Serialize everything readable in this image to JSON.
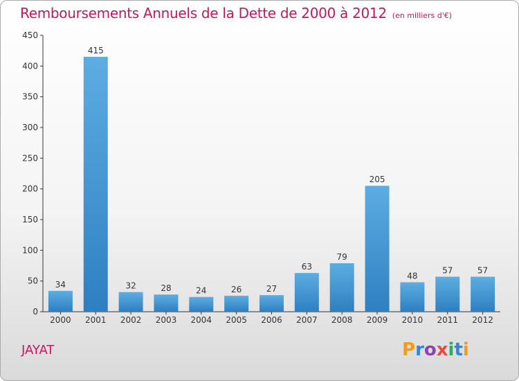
{
  "header": {
    "title": "Remboursements Annuels de la Dette de 2000 à 2012",
    "unit_note": "(en milliers d'€)"
  },
  "footer": {
    "commune": "JAYAT",
    "logo_text": "Proxiti"
  },
  "colors": {
    "title": "#c2185b",
    "bar_top": "#5dade2",
    "bar_bottom": "#2e7fc1",
    "axis": "#333333"
  },
  "chart_data": {
    "type": "bar",
    "title": "Remboursements Annuels de la Dette de 2000 à 2012",
    "subtitle": "(en milliers d'€)",
    "xlabel": "",
    "ylabel": "",
    "categories": [
      "2000",
      "2001",
      "2002",
      "2003",
      "2004",
      "2005",
      "2006",
      "2007",
      "2008",
      "2009",
      "2010",
      "2011",
      "2012"
    ],
    "values": [
      34,
      415,
      32,
      28,
      24,
      26,
      27,
      63,
      79,
      205,
      48,
      57,
      57
    ],
    "ylim": [
      0,
      450
    ],
    "yticks": [
      0,
      50,
      100,
      150,
      200,
      250,
      300,
      350,
      400,
      450
    ],
    "grid": false,
    "legend": "none"
  }
}
